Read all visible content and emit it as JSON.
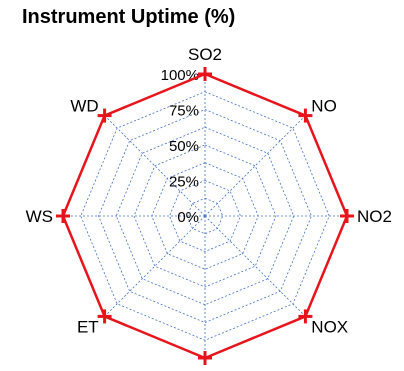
{
  "chart_data": {
    "type": "radar",
    "title": "Instrument Uptime (%)",
    "axes": [
      "SO2",
      "NO",
      "NO2",
      "NOX",
      "",
      "ET",
      "WS",
      "WD"
    ],
    "radial_ticks": [
      "0%",
      "25%",
      "50%",
      "75%",
      "100%"
    ],
    "radial_range": [
      0,
      100
    ],
    "series": [
      {
        "values": [
          100,
          100,
          100,
          100,
          100,
          100,
          100,
          100
        ],
        "color": "#e8141c",
        "marker": "cross"
      }
    ],
    "grid": true,
    "grid_color": "#4472c4",
    "legend": "none"
  }
}
